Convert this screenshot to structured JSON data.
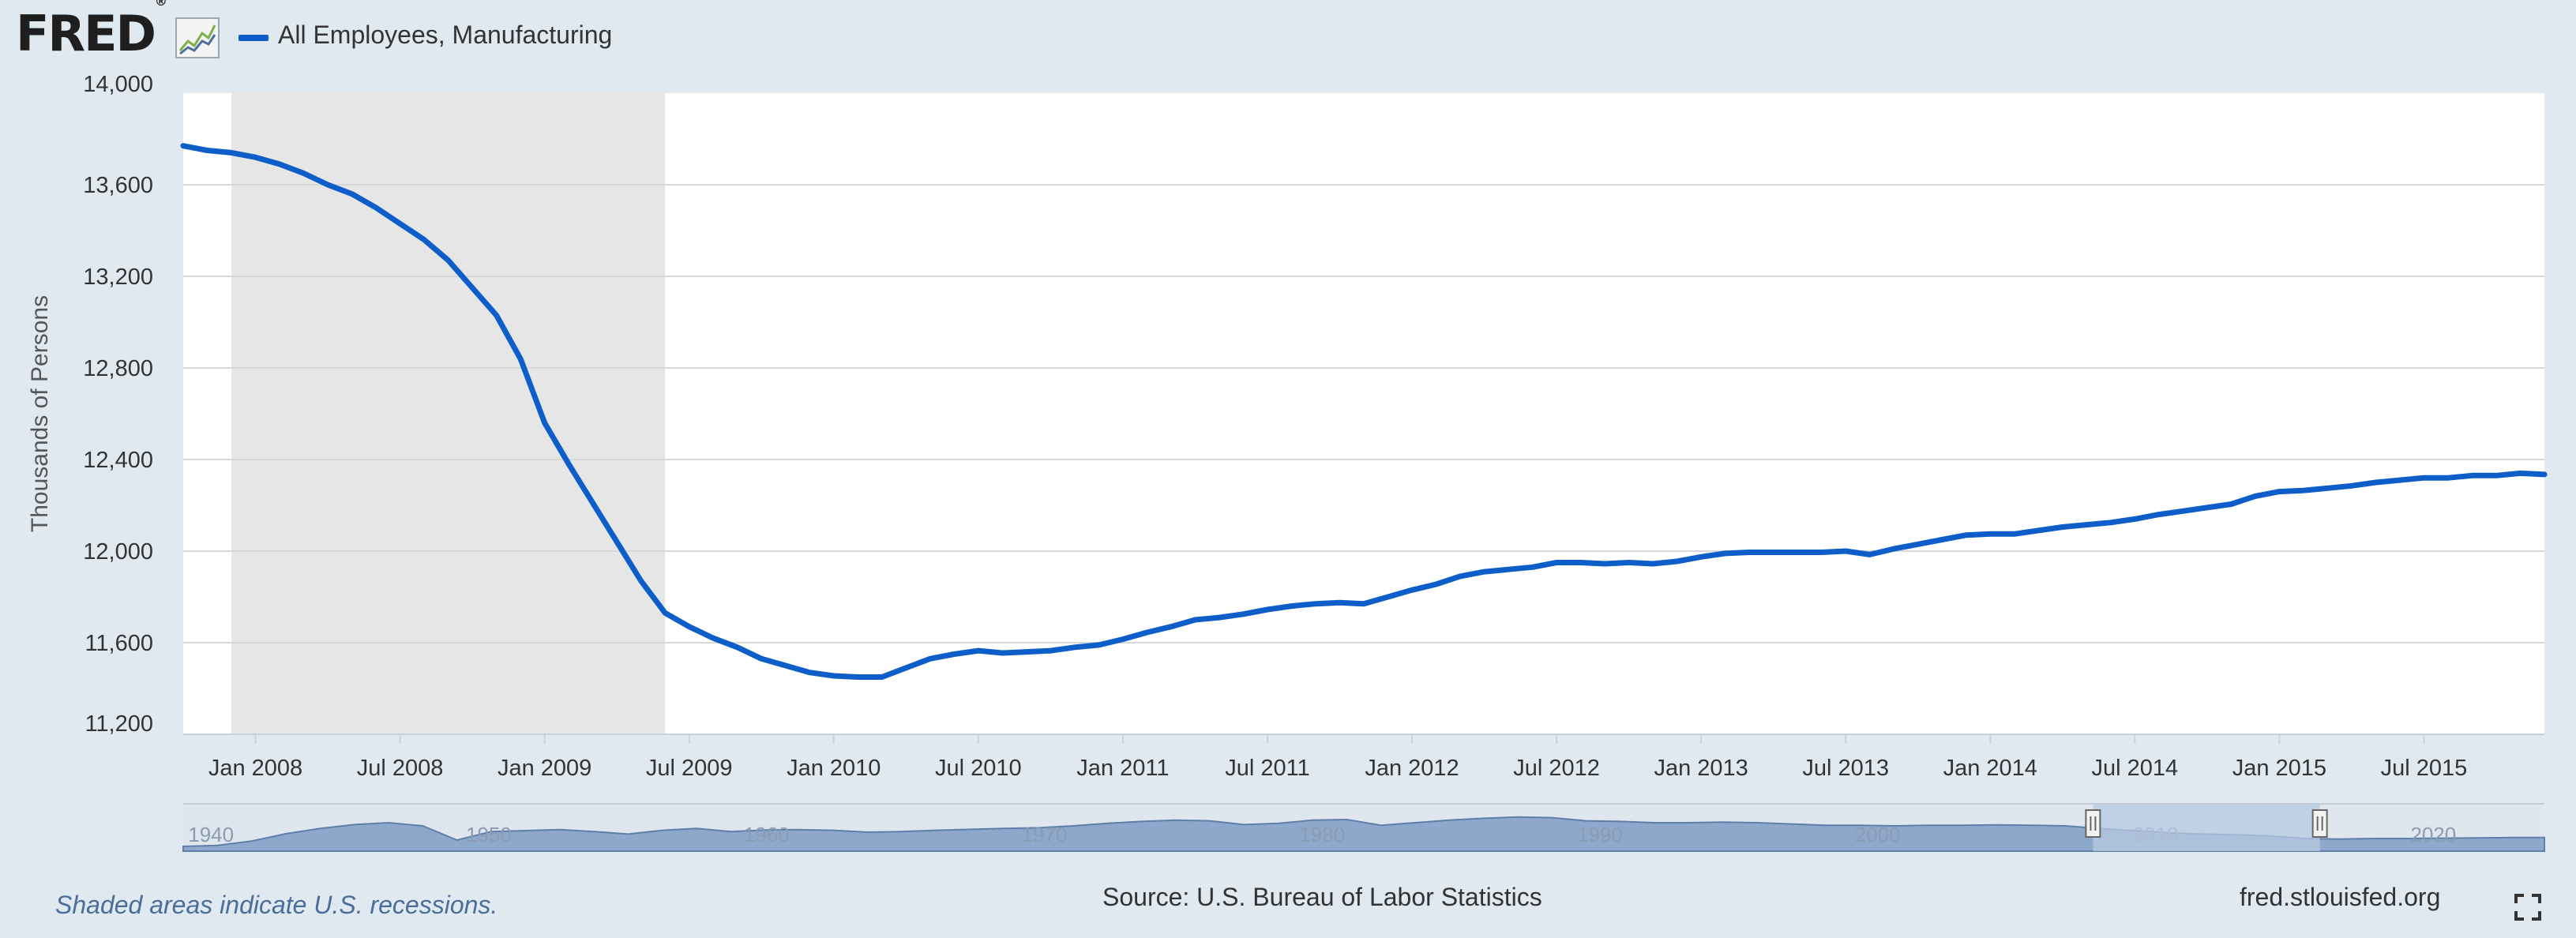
{
  "header": {
    "logo_text": "FRED",
    "logo_reg": "®",
    "logo_icon": "line-graph-icon",
    "series_label": "All Employees, Manufacturing"
  },
  "colors": {
    "background": "#e1e9f0",
    "plot_background": "#ffffff",
    "line": "#0e5ec9",
    "recession_shade": "#e6e6e6",
    "navigator_fill": "#8ea8cc",
    "navigator_selection": "#b7c9e2"
  },
  "chart_data": {
    "type": "line",
    "title": "",
    "xlabel": "",
    "ylabel": "Thousands of Persons",
    "ylim": [
      11200,
      14000
    ],
    "yticks": [
      11200,
      11600,
      12000,
      12400,
      12800,
      13200,
      13600,
      14000
    ],
    "ytick_labels": [
      "11,200",
      "11,600",
      "12,000",
      "12,400",
      "12,800",
      "13,200",
      "13,600",
      "14,000"
    ],
    "xlim": [
      "2007-10",
      "2015-12"
    ],
    "xticks": [
      "2008-01",
      "2008-07",
      "2009-01",
      "2009-07",
      "2010-01",
      "2010-07",
      "2011-01",
      "2011-07",
      "2012-01",
      "2012-07",
      "2013-01",
      "2013-07",
      "2014-01",
      "2014-07",
      "2015-01",
      "2015-07"
    ],
    "xtick_labels": [
      "Jan 2008",
      "Jul 2008",
      "Jan 2009",
      "Jul 2009",
      "Jan 2010",
      "Jul 2010",
      "Jan 2011",
      "Jul 2011",
      "Jan 2012",
      "Jul 2012",
      "Jan 2013",
      "Jul 2013",
      "Jan 2014",
      "Jul 2014",
      "Jan 2015",
      "Jul 2015"
    ],
    "grid": true,
    "recessions": [
      {
        "start": "2007-12",
        "end": "2009-06"
      }
    ],
    "series": [
      {
        "name": "All Employees, Manufacturing",
        "x": [
          "2007-10",
          "2007-11",
          "2007-12",
          "2008-01",
          "2008-02",
          "2008-03",
          "2008-04",
          "2008-05",
          "2008-06",
          "2008-07",
          "2008-08",
          "2008-09",
          "2008-10",
          "2008-11",
          "2008-12",
          "2009-01",
          "2009-02",
          "2009-03",
          "2009-04",
          "2009-05",
          "2009-06",
          "2009-07",
          "2009-08",
          "2009-09",
          "2009-10",
          "2009-11",
          "2009-12",
          "2010-01",
          "2010-02",
          "2010-03",
          "2010-04",
          "2010-05",
          "2010-06",
          "2010-07",
          "2010-08",
          "2010-09",
          "2010-10",
          "2010-11",
          "2010-12",
          "2011-01",
          "2011-02",
          "2011-03",
          "2011-04",
          "2011-05",
          "2011-06",
          "2011-07",
          "2011-08",
          "2011-09",
          "2011-10",
          "2011-11",
          "2011-12",
          "2012-01",
          "2012-02",
          "2012-03",
          "2012-04",
          "2012-05",
          "2012-06",
          "2012-07",
          "2012-08",
          "2012-09",
          "2012-10",
          "2012-11",
          "2012-12",
          "2013-01",
          "2013-02",
          "2013-03",
          "2013-04",
          "2013-05",
          "2013-06",
          "2013-07",
          "2013-08",
          "2013-09",
          "2013-10",
          "2013-11",
          "2013-12",
          "2014-01",
          "2014-02",
          "2014-03",
          "2014-04",
          "2014-05",
          "2014-06",
          "2014-07",
          "2014-08",
          "2014-09",
          "2014-10",
          "2014-11",
          "2014-12",
          "2015-01",
          "2015-02",
          "2015-03",
          "2015-04",
          "2015-05",
          "2015-06",
          "2015-07",
          "2015-08",
          "2015-09",
          "2015-10",
          "2015-11",
          "2015-12"
        ],
        "values": [
          13770,
          13750,
          13740,
          13720,
          13690,
          13650,
          13600,
          13560,
          13500,
          13430,
          13360,
          13270,
          13150,
          13030,
          12840,
          12560,
          12380,
          12210,
          12040,
          11870,
          11730,
          11670,
          11620,
          11580,
          11530,
          11500,
          11470,
          11455,
          11450,
          11450,
          11490,
          11530,
          11550,
          11565,
          11555,
          11560,
          11565,
          11580,
          11590,
          11615,
          11645,
          11670,
          11700,
          11710,
          11725,
          11745,
          11760,
          11770,
          11775,
          11770,
          11800,
          11830,
          11855,
          11890,
          11910,
          11920,
          11930,
          11950,
          11950,
          11945,
          11950,
          11945,
          11955,
          11975,
          11990,
          11995,
          11995,
          11995,
          11995,
          12000,
          11985,
          12010,
          12030,
          12050,
          12070,
          12075,
          12075,
          12090,
          12105,
          12115,
          12125,
          12140,
          12160,
          12175,
          12190,
          12205,
          12240,
          12260,
          12265,
          12275,
          12285,
          12300,
          12310,
          12320,
          12320,
          12330,
          12330,
          12340,
          12335
        ]
      }
    ],
    "navigator": {
      "labels": [
        "1940",
        "1950",
        "1960",
        "1970",
        "1980",
        "1990",
        "2000",
        "2010",
        "2020"
      ],
      "selection": {
        "start": "2007-10",
        "end": "2015-12"
      },
      "shape": [
        0.05,
        0.08,
        0.22,
        0.45,
        0.62,
        0.74,
        0.8,
        0.7,
        0.25,
        0.52,
        0.55,
        0.58,
        0.52,
        0.44,
        0.56,
        0.62,
        0.52,
        0.57,
        0.58,
        0.56,
        0.5,
        0.52,
        0.56,
        0.59,
        0.62,
        0.64,
        0.7,
        0.78,
        0.84,
        0.88,
        0.86,
        0.74,
        0.78,
        0.88,
        0.9,
        0.72,
        0.8,
        0.88,
        0.94,
        0.98,
        0.96,
        0.86,
        0.84,
        0.8,
        0.8,
        0.82,
        0.8,
        0.76,
        0.72,
        0.72,
        0.7,
        0.72,
        0.72,
        0.73,
        0.72,
        0.7,
        0.62,
        0.55,
        0.48,
        0.44,
        0.42,
        0.38,
        0.3,
        0.28,
        0.3,
        0.3,
        0.31,
        0.32,
        0.33,
        0.33
      ]
    }
  },
  "footer": {
    "note": "Shaded areas indicate U.S. recessions.",
    "source": "Source: U.S. Bureau of Labor Statistics",
    "url": "fred.stlouisfed.org",
    "fullscreen_icon": "fullscreen-icon"
  }
}
